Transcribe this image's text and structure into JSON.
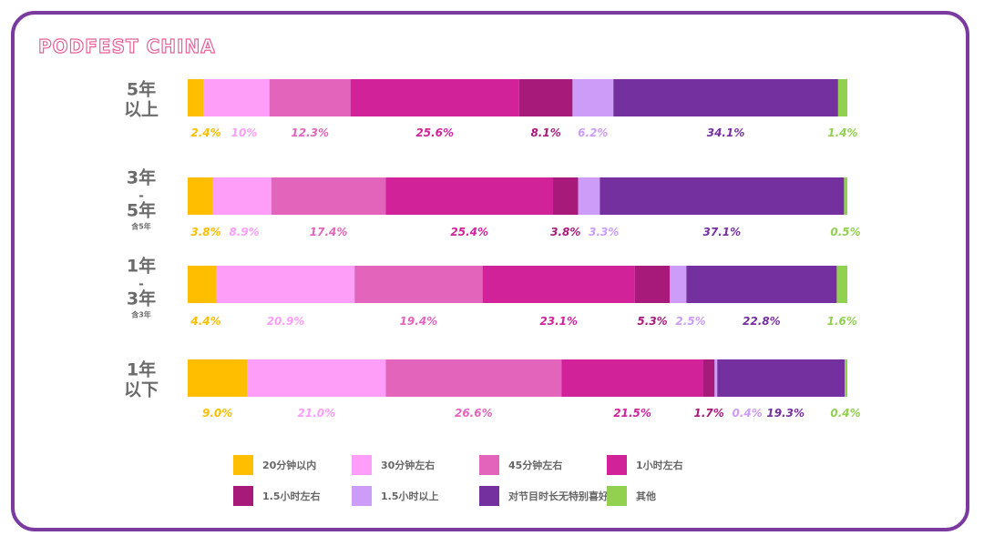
{
  "brand": "PODFEST CHINA",
  "chart_data": {
    "type": "bar",
    "stacked": true,
    "orientation": "horizontal",
    "value_format": "percent",
    "categories": [
      {
        "label_lines": [
          "5年",
          "以上"
        ],
        "note": ""
      },
      {
        "label_lines": [
          "3年",
          "-",
          "5年"
        ],
        "note": "含5年"
      },
      {
        "label_lines": [
          "1年",
          "-",
          "3年"
        ],
        "note": "含3年"
      },
      {
        "label_lines": [
          "1年",
          "以下"
        ],
        "note": ""
      }
    ],
    "series": [
      {
        "name": "20分钟以内",
        "color": "#ffbe00",
        "values": [
          2.4,
          3.8,
          4.4,
          9.0
        ],
        "labels": [
          "2.4%",
          "3.8%",
          "4.4%",
          "9.0%"
        ]
      },
      {
        "name": "30分钟左右",
        "color": "#ff9ef8",
        "values": [
          10,
          8.9,
          20.9,
          21.0
        ],
        "labels": [
          "10%",
          "8.9%",
          "20.9%",
          "21.0%"
        ]
      },
      {
        "name": "45分钟左右",
        "color": "#e365bb",
        "values": [
          12.3,
          17.4,
          19.4,
          26.6
        ],
        "labels": [
          "12.3%",
          "17.4%",
          "19.4%",
          "26.6%"
        ]
      },
      {
        "name": "1小时左右",
        "color": "#d1229a",
        "values": [
          25.6,
          25.4,
          23.1,
          21.5
        ],
        "labels": [
          "25.6%",
          "25.4%",
          "23.1%",
          "21.5%"
        ]
      },
      {
        "name": "1.5小时左右",
        "color": "#a81a7a",
        "values": [
          8.1,
          3.8,
          5.3,
          1.7
        ],
        "labels": [
          "8.1%",
          "3.8%",
          "5.3%",
          "1.7%"
        ]
      },
      {
        "name": "1.5小时以上",
        "color": "#cc9cf8",
        "values": [
          6.2,
          3.3,
          2.5,
          0.4
        ],
        "labels": [
          "6.2%",
          "3.3%",
          "2.5%",
          "0.4%"
        ]
      },
      {
        "name": "对节目时长无特别喜好",
        "color": "#7530a0",
        "values": [
          34.1,
          37.1,
          22.8,
          19.3
        ],
        "labels": [
          "34.1%",
          "37.1%",
          "22.8%",
          "19.3%"
        ]
      },
      {
        "name": "其他",
        "color": "#92d050",
        "values": [
          1.4,
          0.5,
          1.6,
          0.4
        ],
        "labels": [
          "1.4%",
          "0.5%",
          "1.6%",
          "0.4%"
        ]
      }
    ],
    "label_colors": [
      "#ffbe00",
      "#ff9ef8",
      "#e365bb",
      "#d1229a",
      "#a81a7a",
      "#cc9cf8",
      "#7530a0",
      "#92d050"
    ],
    "legend_position": "bottom",
    "grid": false
  }
}
